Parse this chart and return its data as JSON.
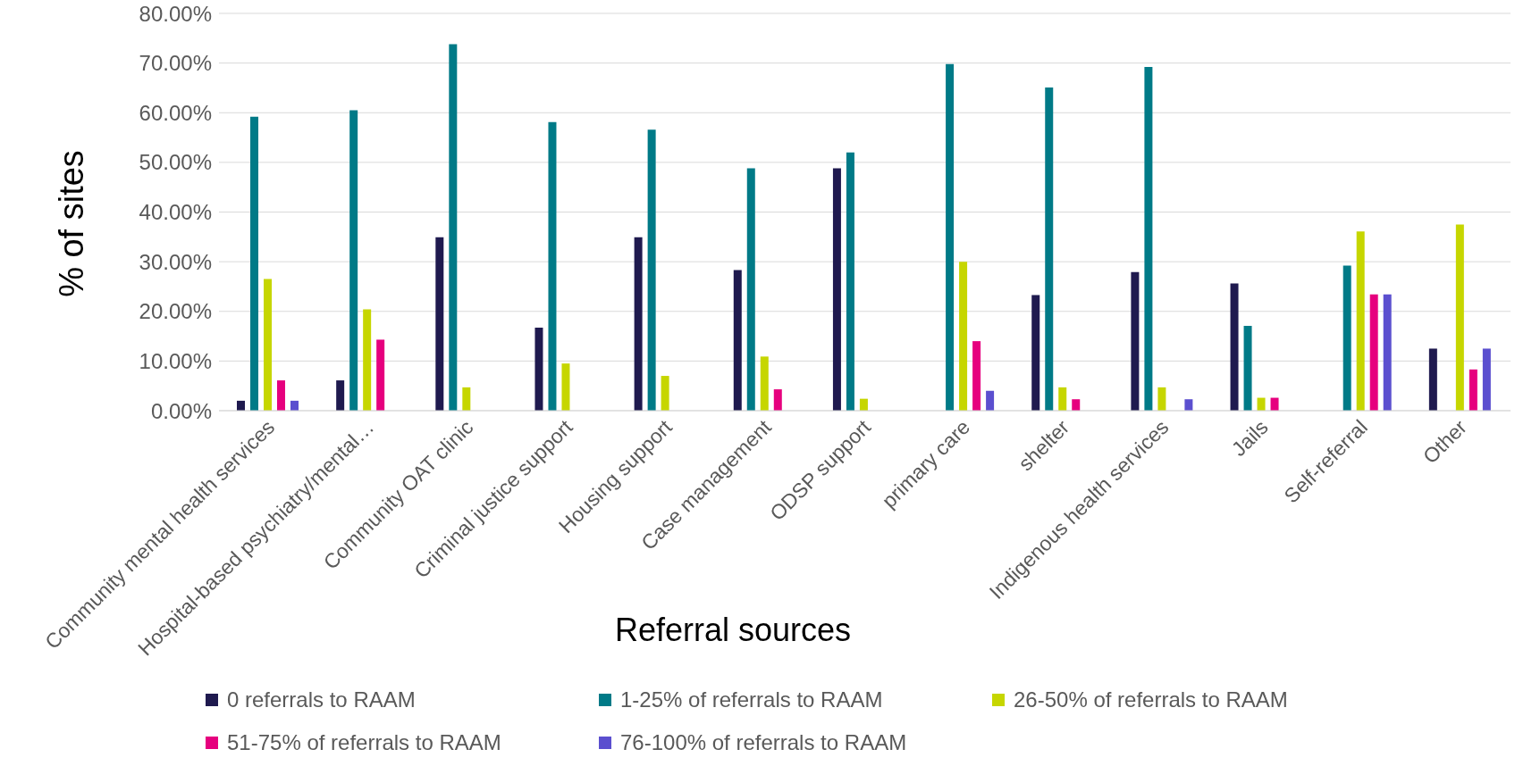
{
  "chart_data": {
    "type": "bar",
    "xlabel": "Referral sources",
    "ylabel": "% of sites",
    "categories": [
      "Community mental health services",
      "Hospital-based psychiatry/mental…",
      "Community OAT clinic",
      "Criminal justice support",
      "Housing support",
      "Case management",
      "ODSP support",
      "primary care",
      "shelter",
      "Indigenous health services",
      "Jails",
      "Self-referral",
      "Other"
    ],
    "series": [
      {
        "name": "0 referrals to RAAM",
        "color": "#1f1a4f",
        "values": [
          2.0,
          6.1,
          34.9,
          16.7,
          34.9,
          28.3,
          48.8,
          0,
          23.3,
          27.9,
          25.6,
          0,
          12.5
        ]
      },
      {
        "name": "1-25% of referrals to RAAM",
        "color": "#007a87",
        "values": [
          59.2,
          60.5,
          73.8,
          58.1,
          56.6,
          48.8,
          52.0,
          69.8,
          65.1,
          69.2,
          17.1,
          29.2,
          0
        ]
      },
      {
        "name": "26-50% of referrals to RAAM",
        "color": "#c6d600",
        "values": [
          26.5,
          20.4,
          4.7,
          9.5,
          7.0,
          10.9,
          2.4,
          30.0,
          4.7,
          4.7,
          2.6,
          36.1,
          37.5
        ]
      },
      {
        "name": "51-75% of referrals to RAAM",
        "color": "#e6007e",
        "values": [
          6.1,
          14.3,
          0,
          0,
          0,
          4.3,
          0,
          14.0,
          2.3,
          0,
          2.6,
          23.4,
          8.3
        ]
      },
      {
        "name": "76-100% of referrals to RAAM",
        "color": "#5b4fcf",
        "values": [
          2.0,
          0,
          0,
          0,
          0,
          0,
          0,
          4.0,
          0,
          2.3,
          0,
          23.4,
          12.5
        ]
      }
    ],
    "ylim": [
      0,
      80
    ],
    "yticks": [
      {
        "value": 0,
        "label": "0.00%"
      },
      {
        "value": 10,
        "label": "10.00%"
      },
      {
        "value": 20,
        "label": "20.00%"
      },
      {
        "value": 30,
        "label": "30.00%"
      },
      {
        "value": 40,
        "label": "40.00%"
      },
      {
        "value": 50,
        "label": "50.00%"
      },
      {
        "value": 60,
        "label": "60.00%"
      },
      {
        "value": 70,
        "label": "70.00%"
      },
      {
        "value": 80,
        "label": "80.00%"
      }
    ],
    "grid": "y",
    "legend": "bottom"
  }
}
